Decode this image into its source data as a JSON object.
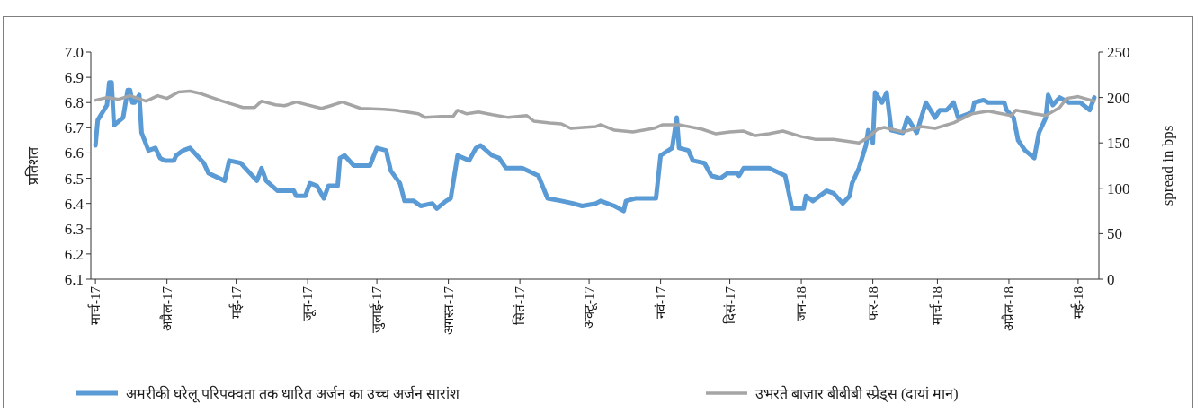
{
  "chart_data": {
    "type": "line",
    "ylabel": "प्रतिशत",
    "y2label": "spread in bps",
    "xlim": [
      "2017-02-27",
      "2018-05-10"
    ],
    "xticks": [
      {
        "value": "2017-03-01",
        "label": "मार्च-17"
      },
      {
        "value": "2017-04-01",
        "label": "अप्रैल-17"
      },
      {
        "value": "2017-05-01",
        "label": "मई-17"
      },
      {
        "value": "2017-06-01",
        "label": "जून-17"
      },
      {
        "value": "2017-07-01",
        "label": "जुलाई-17"
      },
      {
        "value": "2017-08-01",
        "label": "अगस्त-17"
      },
      {
        "value": "2017-09-01",
        "label": "सितं-17"
      },
      {
        "value": "2017-10-01",
        "label": "अक्टू-17"
      },
      {
        "value": "2017-11-01",
        "label": "नवं-17"
      },
      {
        "value": "2017-12-01",
        "label": "दिसं-17"
      },
      {
        "value": "2018-01-01",
        "label": "जन-18"
      },
      {
        "value": "2018-02-01",
        "label": "फर-18"
      },
      {
        "value": "2018-03-01",
        "label": "मार्च-18"
      },
      {
        "value": "2018-04-01",
        "label": "अप्रैल-18"
      },
      {
        "value": "2018-05-01",
        "label": "मई-18"
      }
    ],
    "ylim": [
      6.1,
      7.0
    ],
    "yticks": [
      6.1,
      6.2,
      6.3,
      6.4,
      6.5,
      6.6,
      6.7,
      6.8,
      6.9,
      {
        "value": 7.0,
        "label": "7.0"
      }
    ],
    "y2lim": [
      0,
      250
    ],
    "y2ticks": [
      0,
      50,
      100,
      150,
      200,
      250
    ],
    "legend": "bottom",
    "series": [
      {
        "name": "अमरीकी घरेलू परिपक्वता तक धारित अर्जन का उच्च अर्जन सारांश",
        "color": "#5b9bd5",
        "x": [
          "2017-03-01",
          "2017-03-02",
          "2017-03-06",
          "2017-03-07",
          "2017-03-08",
          "2017-03-09",
          "2017-03-13",
          "2017-03-15",
          "2017-03-16",
          "2017-03-17",
          "2017-03-18",
          "2017-03-20",
          "2017-03-21",
          "2017-03-24",
          "2017-03-27",
          "2017-03-29",
          "2017-03-31",
          "2017-04-04",
          "2017-04-05",
          "2017-04-08",
          "2017-04-11",
          "2017-04-17",
          "2017-04-19",
          "2017-04-26",
          "2017-04-28",
          "2017-05-03",
          "2017-05-10",
          "2017-05-12",
          "2017-05-14",
          "2017-05-19",
          "2017-05-26",
          "2017-05-27",
          "2017-05-31",
          "2017-06-02",
          "2017-06-05",
          "2017-06-08",
          "2017-06-10",
          "2017-06-14",
          "2017-06-15",
          "2017-06-17",
          "2017-06-21",
          "2017-06-24",
          "2017-06-28",
          "2017-07-01",
          "2017-07-05",
          "2017-07-07",
          "2017-07-11",
          "2017-07-13",
          "2017-07-17",
          "2017-07-20",
          "2017-07-25",
          "2017-07-27",
          "2017-07-31",
          "2017-08-02",
          "2017-08-05",
          "2017-08-10",
          "2017-08-13",
          "2017-08-15",
          "2017-08-20",
          "2017-08-23",
          "2017-08-26",
          "2017-08-30",
          "2017-09-02",
          "2017-09-09",
          "2017-09-13",
          "2017-09-19",
          "2017-09-24",
          "2017-09-28",
          "2017-10-04",
          "2017-10-06",
          "2017-10-12",
          "2017-10-16",
          "2017-10-17",
          "2017-10-21",
          "2017-10-24",
          "2017-10-30",
          "2017-11-01",
          "2017-11-06",
          "2017-11-08",
          "2017-11-09",
          "2017-11-13",
          "2017-11-15",
          "2017-11-20",
          "2017-11-23",
          "2017-11-27",
          "2017-11-30",
          "2017-12-04",
          "2017-12-05",
          "2017-12-07",
          "2017-12-11",
          "2017-12-18",
          "2017-12-25",
          "2017-12-28",
          "2018-01-02",
          "2018-01-03",
          "2018-01-06",
          "2018-01-12",
          "2018-01-15",
          "2018-01-19",
          "2018-01-22",
          "2018-01-23",
          "2018-01-26",
          "2018-01-29",
          "2018-01-30",
          "2018-02-01",
          "2018-02-02",
          "2018-02-05",
          "2018-02-07",
          "2018-02-09",
          "2018-02-14",
          "2018-02-16",
          "2018-02-20",
          "2018-02-24",
          "2018-02-28",
          "2018-03-02",
          "2018-03-05",
          "2018-03-08",
          "2018-03-10",
          "2018-03-16",
          "2018-03-17",
          "2018-03-21",
          "2018-03-23",
          "2018-03-30",
          "2018-03-31",
          "2018-04-03",
          "2018-04-05",
          "2018-04-08",
          "2018-04-12",
          "2018-04-14",
          "2018-04-17",
          "2018-04-18",
          "2018-04-20",
          "2018-04-23",
          "2018-04-27",
          "2018-05-02",
          "2018-05-06",
          "2018-05-08"
        ],
        "values": [
          6.63,
          6.73,
          6.79,
          6.88,
          6.88,
          6.71,
          6.74,
          6.85,
          6.85,
          6.8,
          6.8,
          6.83,
          6.68,
          6.61,
          6.62,
          6.58,
          6.57,
          6.57,
          6.59,
          6.61,
          6.62,
          6.56,
          6.52,
          6.49,
          6.57,
          6.56,
          6.49,
          6.54,
          6.49,
          6.45,
          6.45,
          6.43,
          6.43,
          6.48,
          6.47,
          6.42,
          6.47,
          6.47,
          6.58,
          6.59,
          6.55,
          6.55,
          6.55,
          6.62,
          6.61,
          6.53,
          6.48,
          6.41,
          6.41,
          6.39,
          6.4,
          6.38,
          6.41,
          6.42,
          6.59,
          6.57,
          6.62,
          6.63,
          6.59,
          6.58,
          6.54,
          6.54,
          6.54,
          6.51,
          6.42,
          6.41,
          6.4,
          6.39,
          6.4,
          6.41,
          6.39,
          6.37,
          6.41,
          6.42,
          6.42,
          6.42,
          6.59,
          6.62,
          6.74,
          6.62,
          6.61,
          6.57,
          6.56,
          6.51,
          6.5,
          6.52,
          6.52,
          6.51,
          6.54,
          6.54,
          6.54,
          6.51,
          6.38,
          6.38,
          6.43,
          6.41,
          6.45,
          6.44,
          6.4,
          6.43,
          6.48,
          6.54,
          6.63,
          6.69,
          6.64,
          6.84,
          6.8,
          6.84,
          6.69,
          6.68,
          6.74,
          6.68,
          6.8,
          6.74,
          6.77,
          6.77,
          6.8,
          6.74,
          6.76,
          6.8,
          6.81,
          6.8,
          6.8,
          6.77,
          6.74,
          6.65,
          6.61,
          6.58,
          6.68,
          6.74,
          6.83,
          6.79,
          6.82,
          6.8,
          6.8,
          6.77,
          6.82
        ]
      },
      {
        "name": "उभरते बाज़ार बीबीबी स्प्रेड्स (दायां मान)",
        "color": "#a5a5a5",
        "axis": "y2",
        "x": [
          "2017-03-01",
          "2017-03-06",
          "2017-03-11",
          "2017-03-16",
          "2017-03-23",
          "2017-03-28",
          "2017-04-01",
          "2017-04-06",
          "2017-04-11",
          "2017-04-16",
          "2017-04-25",
          "2017-05-04",
          "2017-05-09",
          "2017-05-12",
          "2017-05-18",
          "2017-05-22",
          "2017-05-27",
          "2017-06-07",
          "2017-06-11",
          "2017-06-16",
          "2017-06-24",
          "2017-07-04",
          "2017-07-09",
          "2017-07-19",
          "2017-07-22",
          "2017-07-29",
          "2017-08-03",
          "2017-08-05",
          "2017-08-09",
          "2017-08-14",
          "2017-08-20",
          "2017-08-27",
          "2017-09-04",
          "2017-09-07",
          "2017-09-14",
          "2017-09-19",
          "2017-09-23",
          "2017-10-04",
          "2017-10-06",
          "2017-10-12",
          "2017-10-20",
          "2017-10-29",
          "2017-11-02",
          "2017-11-09",
          "2017-11-19",
          "2017-11-25",
          "2017-12-01",
          "2017-12-07",
          "2017-12-12",
          "2017-12-18",
          "2017-12-24",
          "2018-01-01",
          "2018-01-07",
          "2018-01-15",
          "2018-01-26",
          "2018-01-30",
          "2018-02-03",
          "2018-02-06",
          "2018-02-14",
          "2018-02-22",
          "2018-02-28",
          "2018-03-08",
          "2018-03-16",
          "2018-03-23",
          "2018-03-27",
          "2018-04-02",
          "2018-04-04",
          "2018-04-12",
          "2018-04-17",
          "2018-04-23",
          "2018-04-26",
          "2018-05-01",
          "2018-05-08"
        ],
        "values": [
          197,
          200,
          198,
          202,
          196,
          202,
          199,
          206,
          207,
          204,
          196,
          189,
          189,
          196,
          192,
          191,
          195,
          188,
          191,
          195,
          188,
          187,
          186,
          182,
          178,
          179,
          179,
          186,
          182,
          184,
          181,
          178,
          180,
          174,
          172,
          171,
          166,
          168,
          170,
          164,
          162,
          166,
          170,
          170,
          165,
          160,
          162,
          163,
          158,
          160,
          163,
          157,
          154,
          154,
          150,
          156,
          165,
          167,
          162,
          168,
          166,
          172,
          182,
          185,
          183,
          180,
          186,
          182,
          180,
          189,
          199,
          201,
          196
        ]
      }
    ]
  }
}
